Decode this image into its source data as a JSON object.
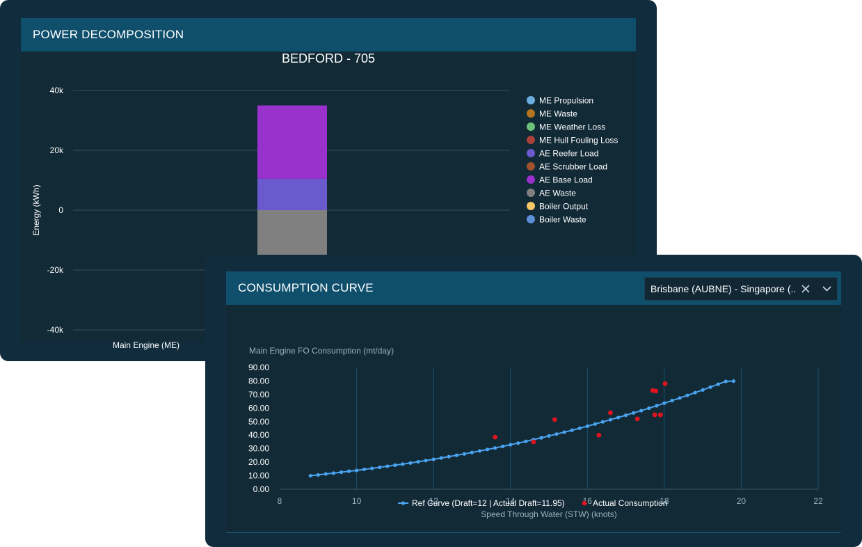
{
  "power": {
    "title": "POWER DECOMPOSITION",
    "chart_title": "BEDFORD - 705"
  },
  "consumption": {
    "title": "CONSUMPTION CURVE",
    "route_select": {
      "value": "Brisbane (AUBNE) - Singapore (..."
    }
  },
  "colors": {
    "panel_bg": "#122a36",
    "header_bg": "#0f4f6c",
    "frame_bg": "#112c3c",
    "ref_curve": "#4aa3f0",
    "actual": "#e0141e"
  },
  "chart_data": [
    {
      "type": "bar",
      "title": "BEDFORD - 705",
      "xlabel": "",
      "ylabel": "Energy (kWh)",
      "ylim": [
        -40000,
        40000
      ],
      "yticks": [
        40000,
        20000,
        0,
        -20000,
        -40000
      ],
      "ytick_labels": [
        "40k",
        "20k",
        "0",
        "-20k",
        "-40k"
      ],
      "categories": [
        "Main Engine (ME)"
      ],
      "legend_position": "right",
      "grid": true,
      "series": [
        {
          "name": "ME Propulsion",
          "color": "#6aaee0",
          "values": [
            0
          ]
        },
        {
          "name": "ME Waste",
          "color": "#b5741e",
          "values": [
            0
          ]
        },
        {
          "name": "ME Weather Loss",
          "color": "#6cc27a",
          "values": [
            0
          ]
        },
        {
          "name": "ME Hull Fouling Loss",
          "color": "#a8423a",
          "values": [
            0
          ]
        },
        {
          "name": "AE Reefer Load",
          "color": "#6a5acd",
          "values": [
            10500
          ]
        },
        {
          "name": "AE Scrubber Load",
          "color": "#a0522d",
          "values": [
            0
          ]
        },
        {
          "name": "AE Base Load",
          "color": "#9932cc",
          "values": [
            24500
          ]
        },
        {
          "name": "AE Waste",
          "color": "#808080",
          "values": [
            -25000
          ]
        },
        {
          "name": "Boiler Output",
          "color": "#f5c766",
          "values": [
            0
          ]
        },
        {
          "name": "Boiler Waste",
          "color": "#5b8fd6",
          "values": [
            0
          ]
        }
      ]
    },
    {
      "type": "scatter",
      "title": "Main Engine FO Consumption (mt/day)",
      "xlabel": "Speed Through Water (STW) (knots)",
      "ylabel": "Main Engine FO Consumption (mt/day)",
      "xlim": [
        8,
        22
      ],
      "ylim": [
        0,
        90
      ],
      "xticks": [
        8,
        10,
        12,
        14,
        16,
        18,
        20,
        22
      ],
      "yticks": [
        "0.00",
        "10.00",
        "20.00",
        "30.00",
        "40.00",
        "50.00",
        "60.00",
        "70.00",
        "80.00",
        "90.00"
      ],
      "legend_position": "bottom",
      "grid": "vertical",
      "series": [
        {
          "name": "Ref Curve (Draft=12 | Actual Draft=11.95)",
          "type": "line",
          "color": "#4aa3f0",
          "x": [
            8.8,
            9.0,
            9.2,
            9.4,
            9.6,
            9.8,
            10.0,
            10.2,
            10.4,
            10.6,
            10.8,
            11.0,
            11.2,
            11.4,
            11.6,
            11.8,
            12.0,
            12.2,
            12.4,
            12.6,
            12.8,
            13.0,
            13.2,
            13.4,
            13.6,
            13.8,
            14.0,
            14.2,
            14.4,
            14.6,
            14.8,
            15.0,
            15.2,
            15.4,
            15.6,
            15.8,
            16.0,
            16.2,
            16.4,
            16.6,
            16.8,
            17.0,
            17.2,
            17.4,
            17.6,
            17.8,
            18.0,
            18.2,
            18.4,
            18.6,
            18.8,
            19.0,
            19.2,
            19.4,
            19.6,
            19.8
          ],
          "y": [
            10.0,
            10.6,
            11.3,
            11.9,
            12.6,
            13.3,
            13.9,
            14.7,
            15.4,
            16.2,
            17.0,
            17.8,
            18.6,
            19.4,
            20.3,
            21.2,
            22.1,
            23.1,
            24.1,
            25.1,
            26.1,
            27.2,
            28.3,
            29.4,
            30.5,
            31.7,
            32.9,
            34.1,
            35.4,
            36.7,
            38.0,
            39.4,
            40.8,
            42.2,
            43.6,
            45.1,
            46.6,
            48.2,
            49.8,
            51.4,
            53.0,
            54.7,
            56.4,
            58.1,
            59.9,
            61.7,
            63.6,
            65.5,
            67.4,
            69.4,
            71.4,
            73.4,
            75.5,
            77.6,
            79.7,
            79.9
          ]
        },
        {
          "name": "Actual Consumption",
          "type": "scatter",
          "color": "#e0141e",
          "x": [
            13.6,
            14.6,
            15.15,
            16.3,
            16.6,
            17.3,
            17.7,
            17.78,
            17.75,
            17.9,
            18.02
          ],
          "y": [
            38.5,
            35.0,
            51.5,
            40.0,
            56.5,
            52.0,
            73.0,
            72.5,
            55.0,
            55.0,
            78.0
          ]
        }
      ]
    }
  ]
}
